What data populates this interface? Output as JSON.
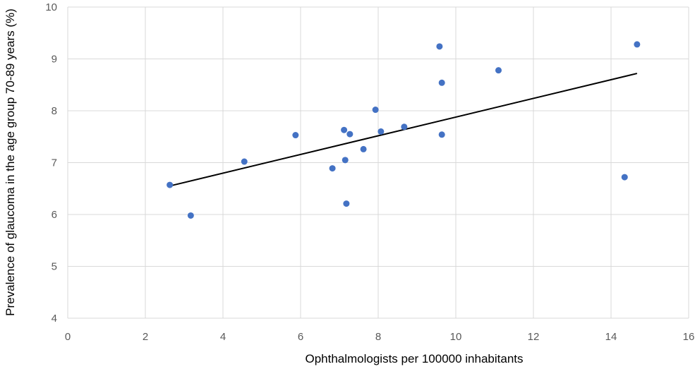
{
  "chart_data": {
    "type": "scatter",
    "title": "",
    "xlabel": "Ophthalmologists per 100000 inhabitants",
    "ylabel": "Prevalence of glaucoma in the age group 70-89 years (%)",
    "xlim": [
      0,
      16
    ],
    "ylim": [
      4,
      10
    ],
    "xticks": [
      0,
      2,
      4,
      6,
      8,
      10,
      12,
      14,
      16
    ],
    "yticks": [
      4,
      5,
      6,
      7,
      8,
      9,
      10
    ],
    "grid": true,
    "legend": "none",
    "series": [
      {
        "color": "#4472c4",
        "points": [
          {
            "x": 2.63,
            "y": 6.57
          },
          {
            "x": 3.17,
            "y": 5.98
          },
          {
            "x": 4.55,
            "y": 7.02
          },
          {
            "x": 5.87,
            "y": 7.53
          },
          {
            "x": 6.82,
            "y": 6.89
          },
          {
            "x": 7.12,
            "y": 7.63
          },
          {
            "x": 7.15,
            "y": 7.05
          },
          {
            "x": 7.18,
            "y": 6.21
          },
          {
            "x": 7.27,
            "y": 7.55
          },
          {
            "x": 7.62,
            "y": 7.26
          },
          {
            "x": 7.93,
            "y": 8.02
          },
          {
            "x": 8.07,
            "y": 7.6
          },
          {
            "x": 8.67,
            "y": 7.69
          },
          {
            "x": 9.58,
            "y": 9.24
          },
          {
            "x": 9.64,
            "y": 8.54
          },
          {
            "x": 9.64,
            "y": 7.54
          },
          {
            "x": 11.1,
            "y": 8.78
          },
          {
            "x": 14.35,
            "y": 6.72
          },
          {
            "x": 14.67,
            "y": 9.28
          }
        ]
      }
    ],
    "trendline": {
      "type": "linear",
      "color": "#000000",
      "from": {
        "x": 2.63,
        "y": 6.55
      },
      "to": {
        "x": 14.67,
        "y": 8.72
      }
    }
  }
}
